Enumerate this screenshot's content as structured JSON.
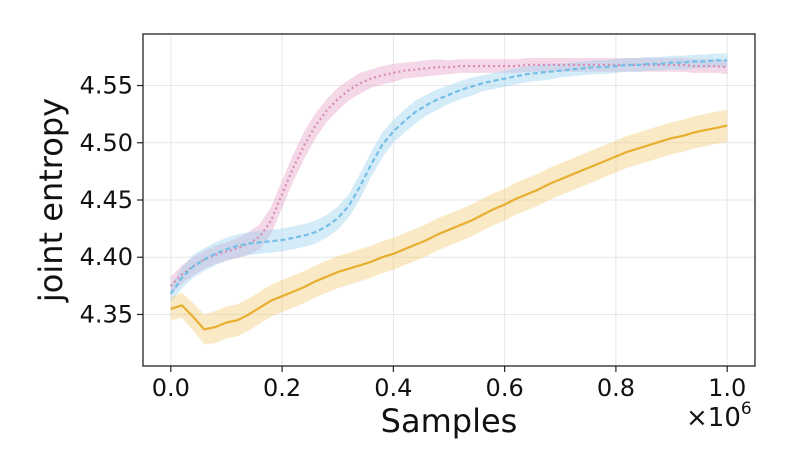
{
  "chart_data": {
    "type": "line",
    "title": "",
    "xlabel": "Samples",
    "ylabel": "joint entropy",
    "x_offset_label": "×10",
    "x_offset_exponent": "6",
    "xlim": [
      -0.05,
      1.05
    ],
    "ylim": [
      4.305,
      4.595
    ],
    "xticks": [
      0.0,
      0.2,
      0.4,
      0.6,
      0.8,
      1.0
    ],
    "xtick_labels": [
      "0.0",
      "0.2",
      "0.4",
      "0.6",
      "0.8",
      "1.0"
    ],
    "yticks": [
      4.35,
      4.4,
      4.45,
      4.5,
      4.55
    ],
    "ytick_labels": [
      "4.35",
      "4.40",
      "4.45",
      "4.50",
      "4.55"
    ],
    "grid": true,
    "legend": "none",
    "x": [
      0.0,
      0.02,
      0.04,
      0.06,
      0.08,
      0.1,
      0.12,
      0.14,
      0.16,
      0.18,
      0.2,
      0.22,
      0.24,
      0.26,
      0.28,
      0.3,
      0.32,
      0.34,
      0.36,
      0.38,
      0.4,
      0.42,
      0.44,
      0.46,
      0.48,
      0.5,
      0.52,
      0.54,
      0.56,
      0.58,
      0.6,
      0.62,
      0.64,
      0.66,
      0.68,
      0.7,
      0.72,
      0.74,
      0.76,
      0.78,
      0.8,
      0.82,
      0.84,
      0.86,
      0.88,
      0.9,
      0.92,
      0.94,
      0.96,
      0.98,
      1.0
    ],
    "series": [
      {
        "color": "#d98cb3",
        "band_color": "#e8a9cc",
        "dash": "2,3",
        "values": [
          4.375,
          4.385,
          4.392,
          4.398,
          4.402,
          4.405,
          4.408,
          4.412,
          4.418,
          4.432,
          4.455,
          4.478,
          4.498,
          4.515,
          4.528,
          4.538,
          4.546,
          4.552,
          4.556,
          4.559,
          4.561,
          4.563,
          4.564,
          4.565,
          4.566,
          4.566,
          4.567,
          4.567,
          4.567,
          4.567,
          4.567,
          4.567,
          4.568,
          4.568,
          4.568,
          4.568,
          4.568,
          4.568,
          4.568,
          4.568,
          4.568,
          4.568,
          4.568,
          4.568,
          4.568,
          4.568,
          4.568,
          4.567,
          4.567,
          4.567,
          4.566
        ],
        "band": [
          0.008,
          0.008,
          0.008,
          0.008,
          0.008,
          0.008,
          0.009,
          0.01,
          0.011,
          0.012,
          0.012,
          0.012,
          0.012,
          0.011,
          0.01,
          0.01,
          0.009,
          0.009,
          0.008,
          0.008,
          0.008,
          0.007,
          0.007,
          0.007,
          0.007,
          0.006,
          0.006,
          0.006,
          0.006,
          0.006,
          0.006,
          0.006,
          0.006,
          0.006,
          0.006,
          0.006,
          0.006,
          0.006,
          0.006,
          0.006,
          0.006,
          0.006,
          0.006,
          0.006,
          0.006,
          0.006,
          0.006,
          0.006,
          0.006,
          0.006,
          0.006
        ]
      },
      {
        "color": "#74bfe6",
        "band_color": "#9fd3ef",
        "dash": "5,3",
        "values": [
          4.368,
          4.382,
          4.392,
          4.398,
          4.403,
          4.407,
          4.41,
          4.412,
          4.413,
          4.414,
          4.415,
          4.417,
          4.419,
          4.422,
          4.427,
          4.434,
          4.445,
          4.462,
          4.481,
          4.498,
          4.51,
          4.519,
          4.527,
          4.533,
          4.538,
          4.542,
          4.546,
          4.549,
          4.552,
          4.554,
          4.556,
          4.558,
          4.56,
          4.561,
          4.562,
          4.563,
          4.564,
          4.565,
          4.566,
          4.566,
          4.567,
          4.568,
          4.568,
          4.569,
          4.569,
          4.57,
          4.57,
          4.571,
          4.571,
          4.572,
          4.572
        ],
        "band": [
          0.008,
          0.009,
          0.01,
          0.01,
          0.01,
          0.01,
          0.01,
          0.01,
          0.01,
          0.01,
          0.01,
          0.01,
          0.01,
          0.01,
          0.01,
          0.01,
          0.01,
          0.011,
          0.011,
          0.011,
          0.01,
          0.01,
          0.01,
          0.009,
          0.009,
          0.008,
          0.008,
          0.008,
          0.007,
          0.007,
          0.007,
          0.007,
          0.007,
          0.007,
          0.007,
          0.006,
          0.006,
          0.006,
          0.006,
          0.006,
          0.006,
          0.006,
          0.006,
          0.006,
          0.006,
          0.006,
          0.006,
          0.006,
          0.006,
          0.006,
          0.006
        ]
      },
      {
        "color": "#e8ae2f",
        "band_color": "#f5cf7f",
        "dash": "",
        "values": [
          4.355,
          4.358,
          4.348,
          4.337,
          4.339,
          4.343,
          4.345,
          4.35,
          4.356,
          4.362,
          4.366,
          4.37,
          4.374,
          4.379,
          4.383,
          4.387,
          4.39,
          4.393,
          4.396,
          4.4,
          4.403,
          4.407,
          4.411,
          4.415,
          4.42,
          4.424,
          4.428,
          4.432,
          4.437,
          4.442,
          4.446,
          4.451,
          4.455,
          4.459,
          4.464,
          4.468,
          4.472,
          4.476,
          4.48,
          4.484,
          4.488,
          4.492,
          4.495,
          4.498,
          4.501,
          4.504,
          4.506,
          4.509,
          4.511,
          4.513,
          4.515
        ],
        "band": [
          0.01,
          0.011,
          0.012,
          0.013,
          0.014,
          0.014,
          0.014,
          0.014,
          0.014,
          0.014,
          0.014,
          0.014,
          0.014,
          0.014,
          0.014,
          0.014,
          0.014,
          0.014,
          0.014,
          0.014,
          0.014,
          0.014,
          0.014,
          0.014,
          0.014,
          0.014,
          0.014,
          0.014,
          0.014,
          0.014,
          0.014,
          0.014,
          0.014,
          0.014,
          0.014,
          0.014,
          0.014,
          0.014,
          0.014,
          0.014,
          0.014,
          0.014,
          0.014,
          0.014,
          0.014,
          0.014,
          0.014,
          0.014,
          0.014,
          0.014,
          0.014
        ]
      }
    ]
  }
}
